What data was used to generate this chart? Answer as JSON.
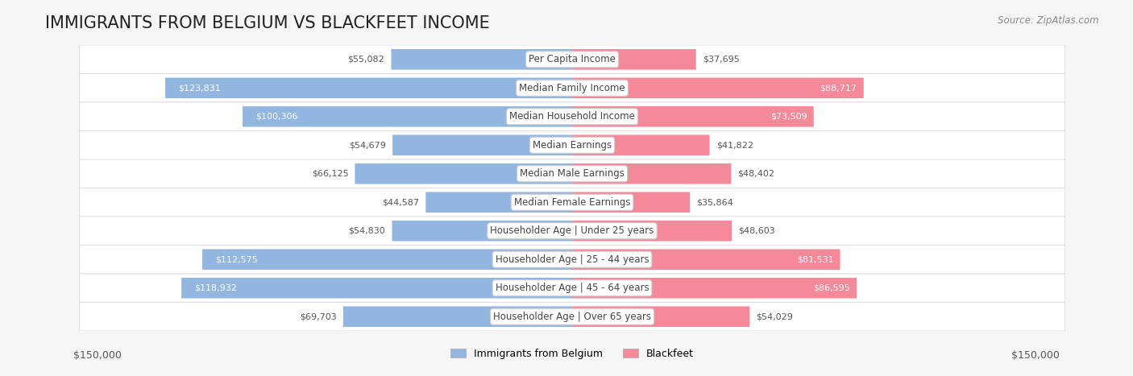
{
  "title": "IMMIGRANTS FROM BELGIUM VS BLACKFEET INCOME",
  "source": "Source: ZipAtlas.com",
  "categories": [
    "Per Capita Income",
    "Median Family Income",
    "Median Household Income",
    "Median Earnings",
    "Median Male Earnings",
    "Median Female Earnings",
    "Householder Age | Under 25 years",
    "Householder Age | 25 - 44 years",
    "Householder Age | 45 - 64 years",
    "Householder Age | Over 65 years"
  ],
  "belgium_values": [
    55082,
    123831,
    100306,
    54679,
    66125,
    44587,
    54830,
    112575,
    118932,
    69703
  ],
  "blackfeet_values": [
    37695,
    88717,
    73509,
    41822,
    48402,
    35864,
    48603,
    81531,
    86595,
    54029
  ],
  "belgium_color": "#93b6e0",
  "blackfeet_color": "#f4899a",
  "belgium_label": "Immigrants from Belgium",
  "blackfeet_label": "Blackfeet",
  "max_value": 150000,
  "xlabel_left": "$150,000",
  "xlabel_right": "$150,000",
  "background_color": "#f5f5f5",
  "row_bg_color": "#ffffff",
  "title_fontsize": 15,
  "label_fontsize": 8.5,
  "value_fontsize": 8.0
}
